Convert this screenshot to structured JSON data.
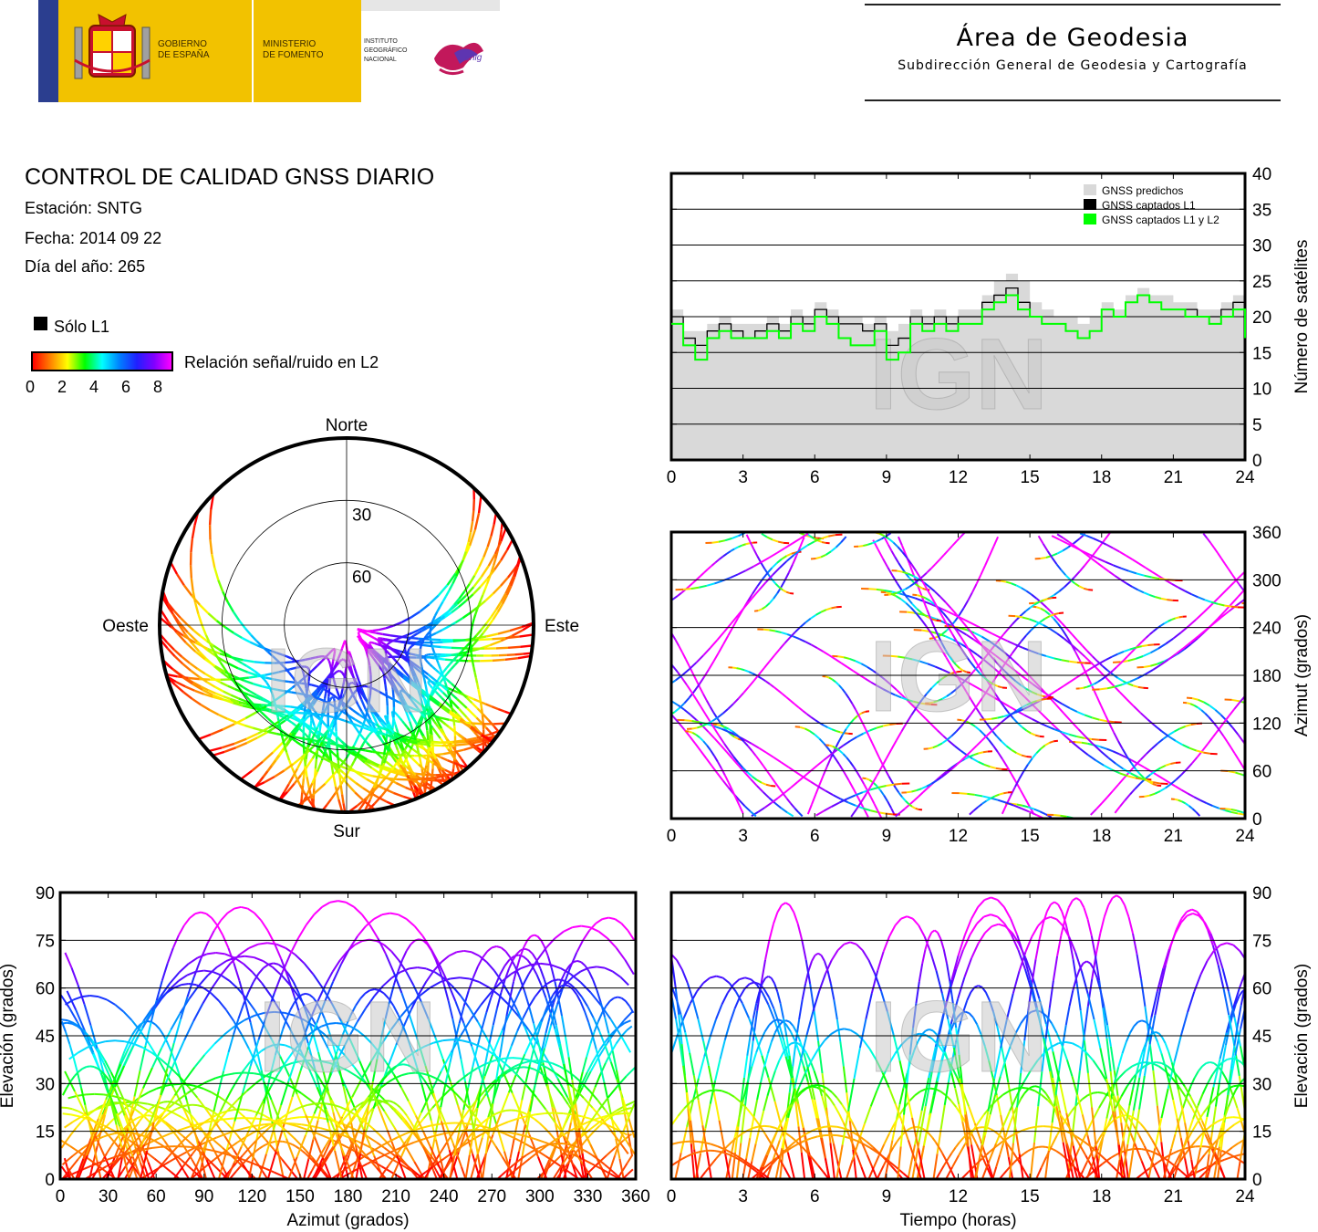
{
  "header": {
    "gov_line1": "GOBIERNO",
    "gov_line2": "DE ESPAÑA",
    "ministry_line1": "MINISTERIO",
    "ministry_line2": "DE FOMENTO",
    "ign_line1": "INSTITUTO",
    "ign_line2": "GEOGRÁFICO",
    "ign_line3": "NACIONAL",
    "cnig": "cnig",
    "area_title": "Área de Geodesia",
    "area_subtitle": "Subdirección General de Geodesia y Cartografía"
  },
  "info": {
    "title": "CONTROL DE CALIDAD GNSS DIARIO",
    "station": "Estación: SNTG",
    "date": "Fecha: 2014 09 22",
    "doy": "Día del año: 265"
  },
  "legend": {
    "solo_l1": "Sólo L1",
    "snr_label": "Relación señal/ruido en L2",
    "snr_ticks": [
      "0",
      "2",
      "4",
      "6",
      "8"
    ],
    "colormap": [
      "#ff0000",
      "#ff8000",
      "#ffff00",
      "#00ff00",
      "#00ffff",
      "#0080ff",
      "#2020ff",
      "#8000ff",
      "#ff00ff"
    ]
  },
  "watermark": "IGN",
  "colors": {
    "predicted_fill": "#d9d9d9",
    "l1_line": "#000000",
    "l1l2_line": "#00ff00",
    "grid": "#000000"
  },
  "chart_data": [
    {
      "id": "satellite-count",
      "type": "area",
      "xlim": [
        0,
        24
      ],
      "ylim": [
        0,
        40
      ],
      "x_ticks": [
        "0",
        "3",
        "6",
        "9",
        "12",
        "15",
        "18",
        "21",
        "24"
      ],
      "y_ticks": [
        "0",
        "5",
        "10",
        "15",
        "20",
        "25",
        "30",
        "35",
        "40"
      ],
      "ylabel": "Número de satélites",
      "legend": [
        "GNSS predichos",
        "GNSS captados L1",
        "GNSS captados L1 y L2"
      ],
      "legend_position": "top-right",
      "x": [
        0,
        0.5,
        1,
        1.5,
        2,
        2.5,
        3,
        3.5,
        4,
        4.5,
        5,
        5.5,
        6,
        6.5,
        7,
        7.5,
        8,
        8.5,
        9,
        9.5,
        10,
        10.5,
        11,
        11.5,
        12,
        12.5,
        13,
        13.5,
        14,
        14.5,
        15,
        15.5,
        16,
        16.5,
        17,
        17.5,
        18,
        18.5,
        19,
        19.5,
        20,
        20.5,
        21,
        21.5,
        22,
        22.5,
        23,
        23.5,
        24
      ],
      "series": [
        {
          "name": "GNSS predichos",
          "values": [
            21,
            18,
            18,
            19,
            20,
            19,
            19,
            19,
            20,
            19,
            21,
            20,
            22,
            21,
            20,
            20,
            19,
            20,
            18,
            19,
            21,
            20,
            21,
            20,
            21,
            21,
            23,
            25,
            26,
            25,
            22,
            21,
            20,
            20,
            19,
            20,
            22,
            21,
            23,
            24,
            23,
            23,
            22,
            22,
            21,
            21,
            22,
            23,
            21
          ]
        },
        {
          "name": "GNSS captados L1",
          "values": [
            20,
            17,
            16,
            18,
            19,
            18,
            17,
            18,
            19,
            18,
            20,
            19,
            21,
            20,
            19,
            19,
            18,
            19,
            16,
            17,
            20,
            19,
            20,
            19,
            20,
            20,
            22,
            23,
            24,
            22,
            20,
            19,
            19,
            18,
            17,
            18,
            21,
            20,
            22,
            23,
            22,
            21,
            21,
            21,
            20,
            20,
            21,
            22,
            19
          ]
        },
        {
          "name": "GNSS captados L1 y L2",
          "values": [
            19,
            16,
            14,
            17,
            18,
            17,
            17,
            17,
            18,
            17,
            19,
            18,
            20,
            19,
            17,
            16,
            16,
            18,
            14,
            15,
            19,
            18,
            19,
            18,
            19,
            19,
            21,
            22,
            23,
            21,
            20,
            19,
            19,
            18,
            17,
            18,
            21,
            20,
            22,
            23,
            22,
            21,
            21,
            20,
            20,
            19,
            20,
            21,
            17
          ]
        }
      ]
    },
    {
      "id": "skyplot",
      "type": "scatter",
      "labels": {
        "north": "Norte",
        "south": "Sur",
        "east": "Este",
        "west": "Oeste"
      },
      "rings": [
        "30",
        "60"
      ]
    },
    {
      "id": "azimuth-time",
      "type": "scatter",
      "xlim": [
        0,
        24
      ],
      "ylim": [
        0,
        360
      ],
      "x_ticks": [
        "0",
        "3",
        "6",
        "9",
        "12",
        "15",
        "18",
        "21",
        "24"
      ],
      "y_ticks": [
        "0",
        "60",
        "120",
        "180",
        "240",
        "300",
        "360"
      ],
      "ylabel": "Azimut (grados)"
    },
    {
      "id": "elevation-azimuth",
      "type": "scatter",
      "xlim": [
        0,
        360
      ],
      "ylim": [
        0,
        90
      ],
      "x_ticks": [
        "0",
        "30",
        "60",
        "90",
        "120",
        "150",
        "180",
        "210",
        "240",
        "270",
        "300",
        "330",
        "360"
      ],
      "y_ticks": [
        "0",
        "15",
        "30",
        "45",
        "60",
        "75",
        "90"
      ],
      "xlabel": "Azimut (grados)",
      "ylabel": "Elevación (grados)"
    },
    {
      "id": "elevation-time",
      "type": "scatter",
      "xlim": [
        0,
        24
      ],
      "ylim": [
        0,
        90
      ],
      "x_ticks": [
        "0",
        "3",
        "6",
        "9",
        "12",
        "15",
        "18",
        "21",
        "24"
      ],
      "y_ticks": [
        "0",
        "15",
        "30",
        "45",
        "60",
        "75",
        "90"
      ],
      "xlabel": "Tiempo (horas)",
      "ylabel": "Elevación (grados)"
    }
  ]
}
